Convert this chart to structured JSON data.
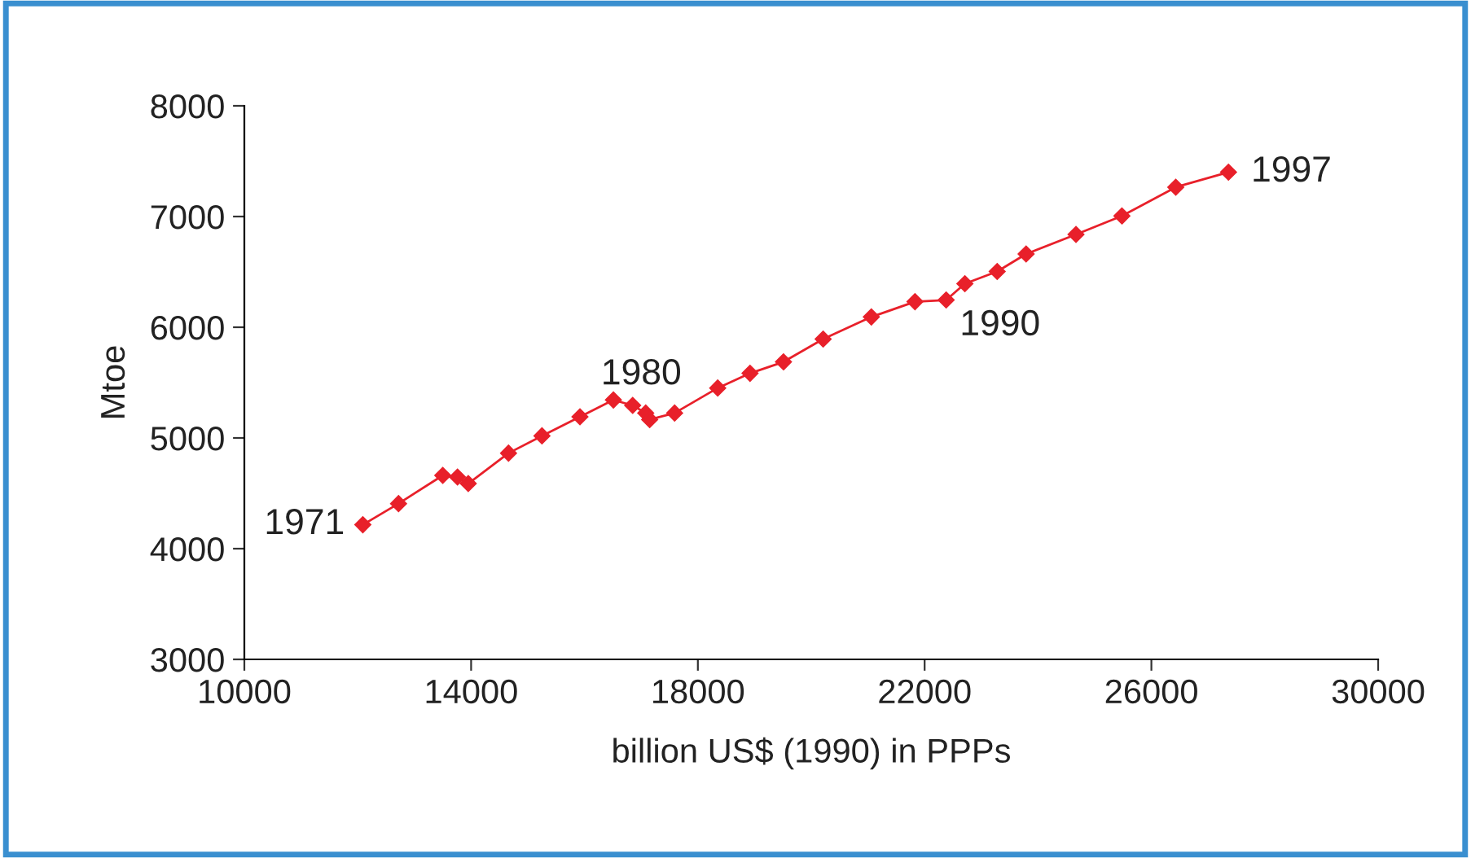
{
  "chart_data": {
    "type": "line",
    "xlabel": "billion US$ (1990) in PPPs",
    "ylabel": "Mtoe",
    "xlim": [
      10000,
      30000
    ],
    "xticks": [
      10000,
      14000,
      18000,
      22000,
      26000,
      30000
    ],
    "ylim": [
      3000,
      8000
    ],
    "yticks": [
      3000,
      4000,
      5000,
      6000,
      7000,
      8000
    ],
    "grid": false,
    "legend": false,
    "marker": "diamond",
    "line_style": "solid",
    "series": [
      {
        "color": "#e8202a",
        "x": [
          12090,
          12720,
          13500,
          13760,
          13950,
          14660,
          15250,
          15920,
          16510,
          16850,
          17080,
          17150,
          17590,
          18350,
          18920,
          19510,
          20210,
          21060,
          21830,
          22380,
          22710,
          23280,
          23790,
          24670,
          25480,
          26430,
          27360
        ],
        "values": [
          4216,
          4407,
          4662,
          4647,
          4588,
          4863,
          5019,
          5191,
          5343,
          5294,
          5225,
          5166,
          5225,
          5451,
          5584,
          5687,
          5893,
          6093,
          6231,
          6246,
          6393,
          6504,
          6662,
          6838,
          7005,
          7265,
          7401
        ]
      }
    ],
    "annotations": [
      {
        "text": "1971",
        "x": 12090,
        "y": 4216
      },
      {
        "text": "1980",
        "x": 16850,
        "y": 5294
      },
      {
        "text": "1990",
        "x": 22380,
        "y": 6246
      },
      {
        "text": "1997",
        "x": 27360,
        "y": 7401
      }
    ]
  }
}
